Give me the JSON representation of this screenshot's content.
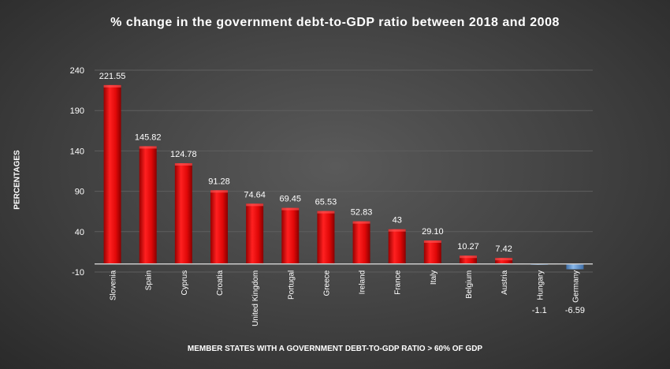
{
  "chart_data": {
    "type": "bar",
    "title": "% change in the government debt-to-GDP ratio between 2018 and 2008",
    "xlabel": "MEMBER STATES WITH A GOVERNMENT DEBT-TO-GDP RATIO > 60% OF GDP",
    "ylabel": "PERCENTAGES",
    "ylim": [
      -10,
      240
    ],
    "yticks": [
      "-10",
      "40",
      "90",
      "140",
      "190",
      "240"
    ],
    "grid": true,
    "categories": [
      "Slovenia",
      "Spain",
      "Cyprus",
      "Croatia",
      "United Kingdom",
      "Portugal",
      "Greece",
      "Ireland",
      "France",
      "Italy",
      "Belgium",
      "Austria",
      "Hungary",
      "Germany"
    ],
    "values": [
      221.55,
      145.82,
      124.78,
      91.28,
      74.64,
      69.45,
      65.53,
      52.83,
      43,
      29.1,
      10.27,
      7.42,
      -1.1,
      -6.59
    ],
    "labels": [
      "221.55",
      "145.82",
      "124.78",
      "91.28",
      "74.64",
      "69.45",
      "65.53",
      "52.83",
      "43",
      "29.10",
      "10.27",
      "7.42",
      "-1.1",
      "-6.59"
    ],
    "colors": {
      "positive": "#e01010",
      "positive_dark": "#8a0000",
      "negative": "#6a9fd8",
      "gridline": "#5e5e5e",
      "baseline": "#c8c8c8"
    }
  }
}
